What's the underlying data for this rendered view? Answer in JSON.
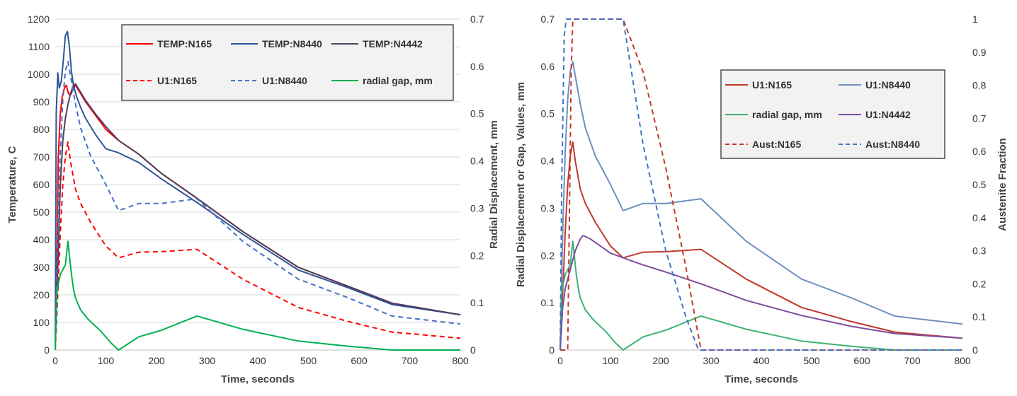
{
  "chart_data": [
    {
      "type": "line",
      "xlabel": "Time, seconds",
      "ylabel": "Temperature, C",
      "y2label": "Radial Displacement, mm",
      "xlim": [
        0,
        800
      ],
      "ylim": [
        0,
        1200
      ],
      "y2lim": [
        0,
        0.7
      ],
      "xticks": [
        "0",
        "100",
        "200",
        "300",
        "400",
        "500",
        "600",
        "700",
        "800"
      ],
      "yticks": [
        "0",
        "100",
        "200",
        "300",
        "400",
        "500",
        "600",
        "700",
        "800",
        "900",
        "1000",
        "1100",
        "1200"
      ],
      "y2ticks": [
        "0",
        "0.1",
        "0.2",
        "0.3",
        "0.4",
        "0.5",
        "0.6",
        "0.7"
      ],
      "grid": "horizontal",
      "legend_position": "top-right",
      "series": [
        {
          "name": "TEMP:N165",
          "axis": "left",
          "color": "#ff0000",
          "dash": "solid",
          "x": [
            0,
            3,
            6,
            10,
            14,
            18,
            22,
            26,
            30,
            35,
            40,
            50,
            60,
            80,
            100,
            125,
            165,
            210,
            280,
            370,
            480,
            580,
            665,
            800
          ],
          "y": [
            20,
            250,
            700,
            860,
            920,
            950,
            960,
            930,
            925,
            945,
            960,
            930,
            900,
            850,
            800,
            760,
            710,
            640,
            550,
            430,
            300,
            230,
            170,
            128
          ]
        },
        {
          "name": "TEMP:N8440",
          "axis": "left",
          "color": "#2f5597",
          "dash": "solid",
          "x": [
            0,
            2,
            5,
            8,
            12,
            16,
            20,
            24,
            28,
            32,
            36,
            42,
            50,
            60,
            80,
            100,
            125,
            165,
            210,
            280,
            370,
            480,
            580,
            665,
            800
          ],
          "y": [
            20,
            860,
            1005,
            950,
            975,
            1050,
            1140,
            1155,
            1100,
            1010,
            960,
            920,
            880,
            840,
            780,
            730,
            715,
            680,
            620,
            535,
            420,
            290,
            225,
            165,
            128
          ]
        },
        {
          "name": "TEMP:N4442",
          "axis": "left",
          "color": "#4f3f5f",
          "dash": "solid",
          "x": [
            0,
            5,
            10,
            15,
            20,
            25,
            30,
            35,
            40,
            50,
            60,
            80,
            100,
            125,
            165,
            210,
            280,
            370,
            480,
            580,
            665,
            800
          ],
          "y": [
            20,
            300,
            600,
            760,
            840,
            890,
            930,
            955,
            965,
            935,
            905,
            855,
            810,
            760,
            710,
            640,
            550,
            430,
            300,
            230,
            170,
            128
          ]
        },
        {
          "name": "U1:N165",
          "axis": "right",
          "color": "#ff0000",
          "dash": "dashed",
          "x": [
            0,
            5,
            10,
            15,
            20,
            25,
            30,
            40,
            50,
            70,
            100,
            125,
            165,
            210,
            280,
            370,
            480,
            580,
            665,
            800
          ],
          "y": [
            0,
            0.12,
            0.25,
            0.35,
            0.41,
            0.44,
            0.4,
            0.34,
            0.31,
            0.27,
            0.22,
            0.195,
            0.207,
            0.208,
            0.213,
            0.15,
            0.09,
            0.06,
            0.038,
            0.025
          ]
        },
        {
          "name": "U1:N8440",
          "axis": "right",
          "color": "#4472c4",
          "dash": "dashed",
          "x": [
            0,
            5,
            10,
            15,
            20,
            25,
            30,
            40,
            50,
            70,
            100,
            125,
            165,
            210,
            280,
            370,
            480,
            580,
            665,
            800
          ],
          "y": [
            0,
            0.25,
            0.42,
            0.53,
            0.59,
            0.61,
            0.58,
            0.52,
            0.47,
            0.41,
            0.35,
            0.295,
            0.31,
            0.31,
            0.32,
            0.23,
            0.15,
            0.11,
            0.072,
            0.055
          ]
        },
        {
          "name": "radial gap, mm",
          "axis": "right",
          "color": "#00b050",
          "dash": "solid",
          "x": [
            0,
            3,
            6,
            10,
            15,
            20,
            25,
            28,
            32,
            36,
            40,
            50,
            65,
            90,
            110,
            125,
            165,
            210,
            280,
            370,
            480,
            580,
            665,
            800
          ],
          "y": [
            0,
            0.12,
            0.14,
            0.16,
            0.17,
            0.18,
            0.23,
            0.2,
            0.16,
            0.13,
            0.11,
            0.085,
            0.065,
            0.04,
            0.015,
            0,
            0.028,
            0.042,
            0.072,
            0.044,
            0.019,
            0.008,
            0,
            0
          ]
        }
      ]
    },
    {
      "type": "line",
      "xlabel": "Time, seconds",
      "ylabel": "Radial Displacement or Gap, Values, mm",
      "y2label": "Austenite Fraction",
      "xlim": [
        0,
        800
      ],
      "ylim": [
        0,
        0.7
      ],
      "y2lim": [
        0,
        1
      ],
      "xticks": [
        "0",
        "100",
        "200",
        "300",
        "400",
        "500",
        "600",
        "700",
        "800"
      ],
      "yticks": [
        "0",
        "0.1",
        "0.2",
        "0.3",
        "0.4",
        "0.5",
        "0.6",
        "0.7"
      ],
      "y2ticks": [
        "0",
        "0.1",
        "0.2",
        "0.3",
        "0.4",
        "0.5",
        "0.6",
        "0.7",
        "0.8",
        "0.9",
        "1"
      ],
      "grid": "none",
      "legend_position": "top-right",
      "series": [
        {
          "name": "U1:N165",
          "axis": "left",
          "color": "#c0392b",
          "dash": "solid",
          "x": [
            0,
            5,
            10,
            15,
            20,
            25,
            30,
            40,
            50,
            70,
            100,
            125,
            165,
            210,
            280,
            370,
            480,
            580,
            665,
            800
          ],
          "y": [
            0,
            0.12,
            0.25,
            0.35,
            0.41,
            0.44,
            0.4,
            0.34,
            0.31,
            0.27,
            0.22,
            0.195,
            0.207,
            0.208,
            0.213,
            0.15,
            0.09,
            0.06,
            0.038,
            0.025
          ]
        },
        {
          "name": "U1:N8440",
          "axis": "left",
          "color": "#6f8fbf",
          "dash": "solid",
          "x": [
            0,
            5,
            10,
            15,
            20,
            25,
            30,
            40,
            50,
            70,
            100,
            125,
            165,
            210,
            280,
            370,
            480,
            580,
            665,
            800
          ],
          "y": [
            0,
            0.25,
            0.42,
            0.53,
            0.59,
            0.61,
            0.58,
            0.52,
            0.47,
            0.41,
            0.35,
            0.295,
            0.31,
            0.31,
            0.32,
            0.23,
            0.15,
            0.11,
            0.072,
            0.055
          ]
        },
        {
          "name": "radial gap, mm",
          "axis": "left",
          "color": "#3cb371",
          "dash": "solid",
          "x": [
            0,
            3,
            6,
            10,
            15,
            20,
            25,
            28,
            32,
            36,
            40,
            50,
            65,
            90,
            110,
            125,
            165,
            210,
            280,
            370,
            480,
            580,
            665,
            800
          ],
          "y": [
            0,
            0.12,
            0.14,
            0.16,
            0.17,
            0.18,
            0.23,
            0.2,
            0.16,
            0.13,
            0.11,
            0.085,
            0.065,
            0.04,
            0.015,
            0,
            0.028,
            0.042,
            0.072,
            0.044,
            0.019,
            0.008,
            0,
            0
          ]
        },
        {
          "name": "U1:N4442",
          "axis": "left",
          "color": "#7d4c9e",
          "dash": "solid",
          "x": [
            0,
            5,
            10,
            20,
            30,
            40,
            45,
            50,
            60,
            80,
            100,
            125,
            165,
            210,
            280,
            370,
            480,
            580,
            665,
            800
          ],
          "y": [
            0,
            0.09,
            0.13,
            0.17,
            0.21,
            0.235,
            0.242,
            0.24,
            0.235,
            0.22,
            0.205,
            0.195,
            0.18,
            0.165,
            0.14,
            0.105,
            0.073,
            0.05,
            0.035,
            0.025
          ]
        },
        {
          "name": "Aust:N165",
          "axis": "right",
          "color": "#c0392b",
          "dash": "dashed",
          "x": [
            0,
            15,
            22,
            25,
            125,
            165,
            210,
            250,
            280,
            800
          ],
          "y": [
            0,
            0,
            0.85,
            1,
            1,
            0.84,
            0.55,
            0.25,
            0,
            0
          ]
        },
        {
          "name": "Aust:N8440",
          "axis": "right",
          "color": "#4472c4",
          "dash": "dashed",
          "x": [
            0,
            3,
            8,
            12,
            125,
            165,
            210,
            250,
            275,
            800
          ],
          "y": [
            0,
            0.5,
            0.95,
            1,
            1,
            0.62,
            0.3,
            0.1,
            0,
            0
          ]
        }
      ]
    }
  ]
}
